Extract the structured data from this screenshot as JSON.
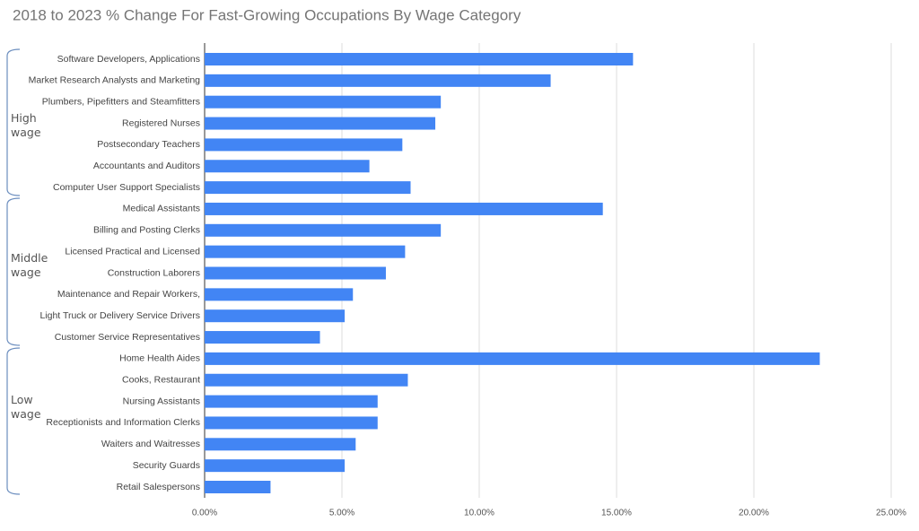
{
  "chart_data": {
    "type": "hbar",
    "title": "2018 to 2023 % Change For Fast-Growing Occupations By Wage Category",
    "categories": [
      "Software Developers, Applications",
      "Market Research Analysts and Marketing",
      "Plumbers, Pipefitters and Steamfitters",
      "Registered Nurses",
      "Postsecondary Teachers",
      "Accountants and Auditors",
      "Computer User Support Specialists",
      "Medical Assistants",
      "Billing and Posting Clerks",
      "Licensed Practical and Licensed",
      "Construction Laborers",
      "Maintenance and Repair Workers,",
      "Light Truck or Delivery Service Drivers",
      "Customer Service Representatives",
      "Home Health Aides",
      "Cooks, Restaurant",
      "Nursing Assistants",
      "Receptionists and Information Clerks",
      "Waiters and Waitresses",
      "Security Guards",
      "Retail Salespersons"
    ],
    "values": [
      15.6,
      12.6,
      8.6,
      8.4,
      7.2,
      6.0,
      7.5,
      14.5,
      8.6,
      7.3,
      6.6,
      5.4,
      5.1,
      4.2,
      22.4,
      7.4,
      6.3,
      6.3,
      5.5,
      5.1,
      2.4
    ],
    "color": "#4285f4",
    "xlim": [
      0,
      25
    ],
    "xticks": [
      {
        "value": 0,
        "label": "0.00%"
      },
      {
        "value": 5,
        "label": "5.00%"
      },
      {
        "value": 10,
        "label": "10.00%"
      },
      {
        "value": 15,
        "label": "15.00%"
      },
      {
        "value": 20,
        "label": "20.00%"
      },
      {
        "value": 25,
        "label": "25.00%"
      }
    ],
    "grid": true,
    "annotations": [
      "High wage",
      "Middle wage",
      "Low wage"
    ]
  }
}
